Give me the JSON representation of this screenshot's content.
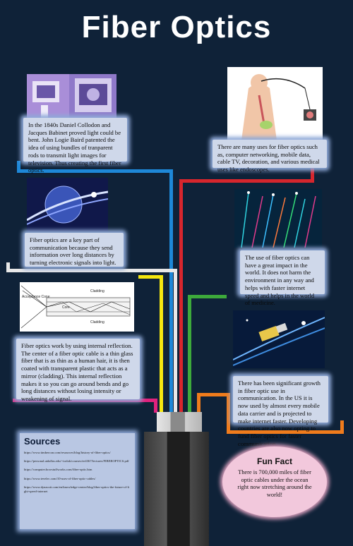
{
  "title": "Fiber Optics",
  "sections": {
    "history": "In the 1840s Daniel Collodon and Jacques Babinet proved light could be bent. John Logie Baird patented the idea of using bundles of tranparent rods to transmit light images for television. Thus creating the first fiber optics.",
    "uses": "There are many uses for fiber optics such as, computer networking, mobile data, cable TV, decoration, and various medical uses like endoscopes.",
    "communication": "Fiber optics are a key part of communication because they send information over long distances by turning electronic signals into light.",
    "impact": "The use of fiber optics can have a great impact in the world. It does not harm the environment in any way and helps with faster internet speed and helps in the world of medicine.",
    "how_it_works": "Fiber optics work by using internal reflection. The center of a fiber optic cable is a thin glass fiber that is as thin as a human hair, it is then coated with transparent plastic that acts as a mirror (cladding). This internal reflection makes it so you can go around bends and go long distances without losing intensity or weakening of signal.",
    "growth": "There has been significant growth in fiber optic use in communication. In the US it is now used by almost every mobile data carrier and is projected to make internet faster. Developing countries are also now opting to fund fiber optics for faster communication."
  },
  "diagram": {
    "acceptance_cone": "Acceptance Cone",
    "core": "Core",
    "cladding_top": "Cladding",
    "cladding_bottom": "Cladding"
  },
  "sources": {
    "title": "Sources",
    "items": [
      "https://www.timbercon.com/resources/blog/history-of-fiber-optics/",
      "https://personal.utdallas.edu/~torlak/courses/ee4367/lectures/FIBEROPTICS.pdf",
      "https://computer.howstuffworks.com/fiber-optic.htm",
      "https://www.tevelec.com/10-uses-of-fiber-optic-cables/",
      "https://www.dynacoit.com/en/knowledge-center/blog/fiber-optics-the-future-of-light-speed-internet"
    ]
  },
  "fun_fact": {
    "title": "Fun Fact",
    "text": "There is 700,000 miles of fiber optic cables under the ocean right now stretching around the world!"
  },
  "colors": {
    "background": "#0f2238",
    "wire_blue": "#1e88d8",
    "wire_red": "#d7262d",
    "wire_white": "#e8e8e8",
    "wire_yellow": "#f4e60f",
    "wire_green": "#3daa3b",
    "wire_magenta": "#e0227d",
    "wire_orange": "#f07c1c"
  }
}
